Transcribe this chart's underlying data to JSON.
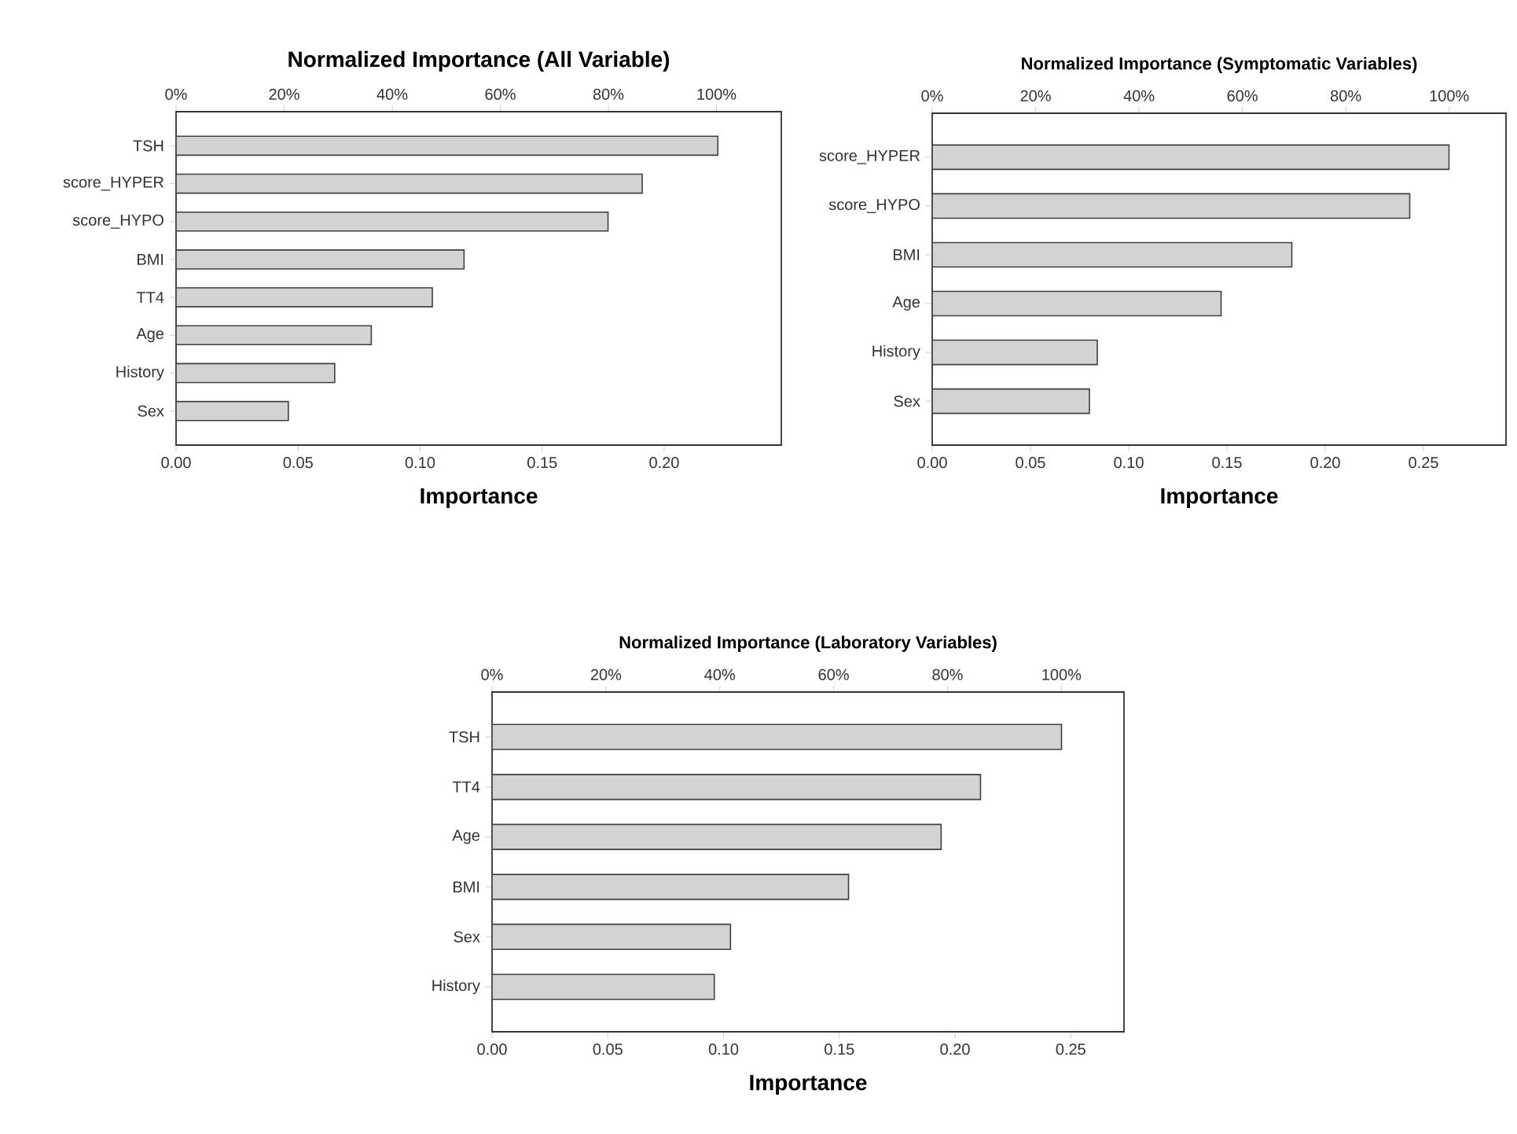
{
  "chart_data": [
    {
      "type": "bar",
      "orientation": "horizontal",
      "title": "Normalized Importance (All Variable)",
      "xlabel": "Importance",
      "categories": [
        "TSH",
        "score_HYPER",
        "score_HYPO",
        "BMI",
        "TT4",
        "Age",
        "History",
        "Sex"
      ],
      "values": [
        0.222,
        0.191,
        0.177,
        0.118,
        0.105,
        0.08,
        0.065,
        0.046
      ],
      "color": "#d3d3d3",
      "xlim": [
        0,
        0.248
      ],
      "xticks": [
        {
          "value": 0,
          "label": "0.00"
        },
        {
          "value": 0.05,
          "label": "0.05"
        },
        {
          "value": 0.1,
          "label": "0.10"
        },
        {
          "value": 0.15,
          "label": "0.15"
        },
        {
          "value": 0.2,
          "label": "0.20"
        }
      ],
      "x2lim": [
        0,
        112
      ],
      "x2ticks": [
        {
          "value": 0,
          "label": "0%"
        },
        {
          "value": 20,
          "label": "20%"
        },
        {
          "value": 40,
          "label": "40%"
        },
        {
          "value": 60,
          "label": "60%"
        },
        {
          "value": 80,
          "label": "80%"
        },
        {
          "value": 100,
          "label": "100%"
        }
      ]
    },
    {
      "type": "bar",
      "orientation": "horizontal",
      "title": "Normalized Importance (Symptomatic Variables)",
      "xlabel": "Importance",
      "categories": [
        "score_HYPER",
        "score_HYPO",
        "BMI",
        "Age",
        "History",
        "Sex"
      ],
      "values": [
        0.263,
        0.243,
        0.183,
        0.147,
        0.084,
        0.08
      ],
      "color": "#d3d3d3",
      "xlim": [
        0,
        0.292
      ],
      "xticks": [
        {
          "value": 0,
          "label": "0.00"
        },
        {
          "value": 0.05,
          "label": "0.05"
        },
        {
          "value": 0.1,
          "label": "0.10"
        },
        {
          "value": 0.15,
          "label": "0.15"
        },
        {
          "value": 0.2,
          "label": "0.20"
        },
        {
          "value": 0.25,
          "label": "0.25"
        }
      ],
      "x2lim": [
        0,
        111
      ],
      "x2ticks": [
        {
          "value": 0,
          "label": "0%"
        },
        {
          "value": 20,
          "label": "20%"
        },
        {
          "value": 40,
          "label": "40%"
        },
        {
          "value": 60,
          "label": "60%"
        },
        {
          "value": 80,
          "label": "80%"
        },
        {
          "value": 100,
          "label": "100%"
        }
      ]
    },
    {
      "type": "bar",
      "orientation": "horizontal",
      "title": "Normalized Importance (Laboratory Variables)",
      "xlabel": "Importance",
      "categories": [
        "TSH",
        "TT4",
        "Age",
        "BMI",
        "Sex",
        "History"
      ],
      "values": [
        0.246,
        0.211,
        0.194,
        0.154,
        0.103,
        0.096
      ],
      "color": "#d3d3d3",
      "xlim": [
        0,
        0.273
      ],
      "xticks": [
        {
          "value": 0,
          "label": "0.00"
        },
        {
          "value": 0.05,
          "label": "0.05"
        },
        {
          "value": 0.1,
          "label": "0.10"
        },
        {
          "value": 0.15,
          "label": "0.15"
        },
        {
          "value": 0.2,
          "label": "0.20"
        },
        {
          "value": 0.25,
          "label": "0.25"
        }
      ],
      "x2lim": [
        0,
        111
      ],
      "x2ticks": [
        {
          "value": 0,
          "label": "0%"
        },
        {
          "value": 20,
          "label": "20%"
        },
        {
          "value": 40,
          "label": "40%"
        },
        {
          "value": 60,
          "label": "60%"
        },
        {
          "value": 80,
          "label": "80%"
        },
        {
          "value": 100,
          "label": "100%"
        }
      ]
    }
  ]
}
